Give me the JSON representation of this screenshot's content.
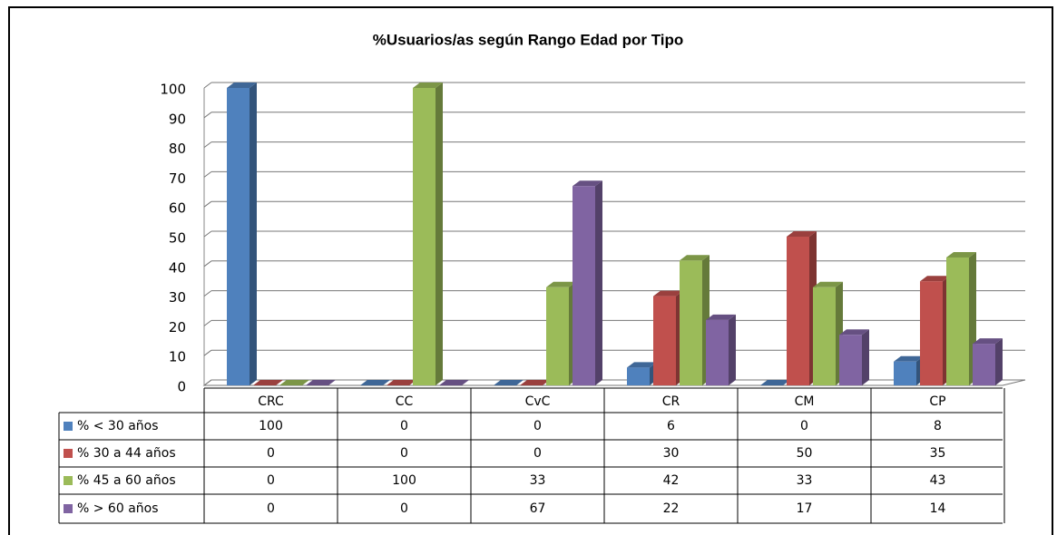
{
  "chart_data": {
    "type": "bar",
    "title": "%Usuarios/as según Rango Edad por Tipo",
    "categories": [
      "CRC",
      "CC",
      "CvC",
      "CR",
      "CM",
      "CP"
    ],
    "series": [
      {
        "name": "% < 30 años",
        "color": "#4f81bd",
        "values": [
          100,
          0,
          0,
          6,
          0,
          8
        ]
      },
      {
        "name": "% 30 a 44 años",
        "color": "#c0504d",
        "values": [
          0,
          0,
          0,
          30,
          50,
          35
        ]
      },
      {
        "name": "% 45 a 60 años",
        "color": "#9bbb59",
        "values": [
          0,
          100,
          33,
          42,
          33,
          43
        ]
      },
      {
        "name": "% > 60 años",
        "color": "#8064a2",
        "values": [
          0,
          0,
          67,
          22,
          17,
          14
        ]
      }
    ],
    "ylim": [
      0,
      100
    ],
    "yticks": [
      0,
      10,
      20,
      30,
      40,
      50,
      60,
      70,
      80,
      90,
      100
    ],
    "grid": true
  }
}
